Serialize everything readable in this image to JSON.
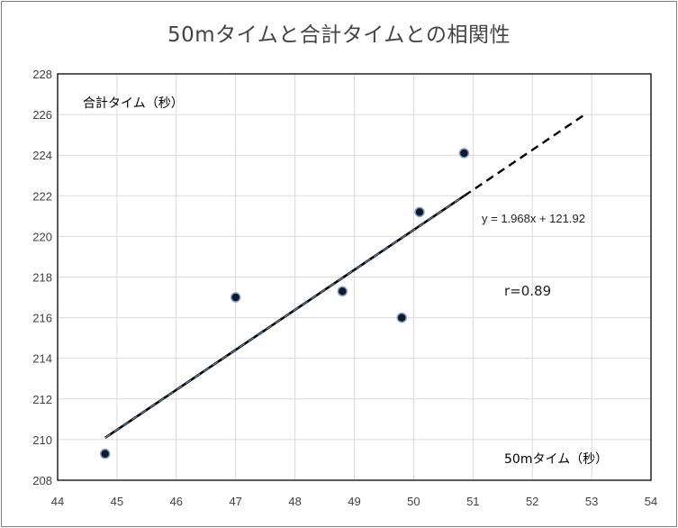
{
  "chart_data": {
    "type": "scatter",
    "title": "50mタイムと合計タイムとの相関性",
    "xlabel": "50mタイム（秒）",
    "ylabel": "合計タイム（秒）",
    "xlim": [
      44,
      54
    ],
    "ylim": [
      208,
      228
    ],
    "x_ticks": [
      44,
      45,
      46,
      47,
      48,
      49,
      50,
      51,
      52,
      53,
      54
    ],
    "y_ticks": [
      208,
      210,
      212,
      214,
      216,
      218,
      220,
      222,
      224,
      226,
      228
    ],
    "grid": true,
    "points": [
      {
        "x": 44.8,
        "y": 209.3
      },
      {
        "x": 47.0,
        "y": 217.0
      },
      {
        "x": 48.8,
        "y": 217.3
      },
      {
        "x": 49.8,
        "y": 216.0
      },
      {
        "x": 50.1,
        "y": 221.2
      },
      {
        "x": 50.85,
        "y": 224.1
      }
    ],
    "trendline": {
      "slope": 1.968,
      "intercept": 121.92,
      "x_start": 44.8,
      "x_end": 52.9,
      "equation": "y = 1.968x + 121.92"
    },
    "annotation": "r=0.89",
    "colors": {
      "marker_fill": "#0c1a33",
      "marker_edge": "#8aa3c4",
      "trendline_dark": "#000000",
      "trendline_light": "#5f87b0",
      "grid": "#d9d9d9",
      "axis": "#000000"
    }
  }
}
